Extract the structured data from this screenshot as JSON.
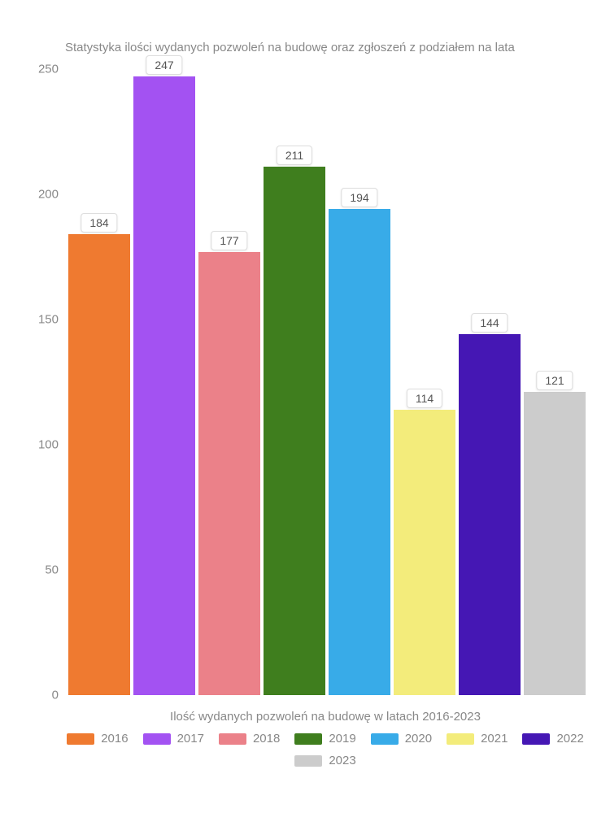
{
  "chart": {
    "type": "bar",
    "title": "Statystyka ilości wydanych pozwoleń na budowę oraz zgłoszeń z podziałem na lata",
    "title_fontsize": 15,
    "title_color": "#888888",
    "x_axis_label": "Ilość wydanych pozwoleń na budowę w latach 2016-2023",
    "x_axis_label_fontsize": 15,
    "categories": [
      "2016",
      "2017",
      "2018",
      "2019",
      "2020",
      "2021",
      "2022",
      "2023"
    ],
    "values": [
      184,
      247,
      177,
      211,
      194,
      114,
      144,
      121
    ],
    "bar_colors": [
      "#ef7a30",
      "#a352f2",
      "#eb8189",
      "#3f7e1e",
      "#38abe8",
      "#f3ec7b",
      "#4517b4",
      "#cccccc"
    ],
    "ylim": [
      0,
      250
    ],
    "yticks": [
      0,
      50,
      100,
      150,
      200,
      250
    ],
    "background_color": "#ffffff",
    "tick_color": "#888888",
    "tick_fontsize": 15,
    "bar_label_bg": "#ffffff",
    "bar_label_border": "#dddddd",
    "bar_label_color": "#555555",
    "bar_label_fontsize": 14,
    "legend_items": [
      {
        "label": "2016",
        "color": "#ef7a30"
      },
      {
        "label": "2017",
        "color": "#a352f2"
      },
      {
        "label": "2018",
        "color": "#eb8189"
      },
      {
        "label": "2019",
        "color": "#3f7e1e"
      },
      {
        "label": "2020",
        "color": "#38abe8"
      },
      {
        "label": "2021",
        "color": "#f3ec7b"
      },
      {
        "label": "2022",
        "color": "#4517b4"
      },
      {
        "label": "2023",
        "color": "#cccccc"
      }
    ]
  }
}
